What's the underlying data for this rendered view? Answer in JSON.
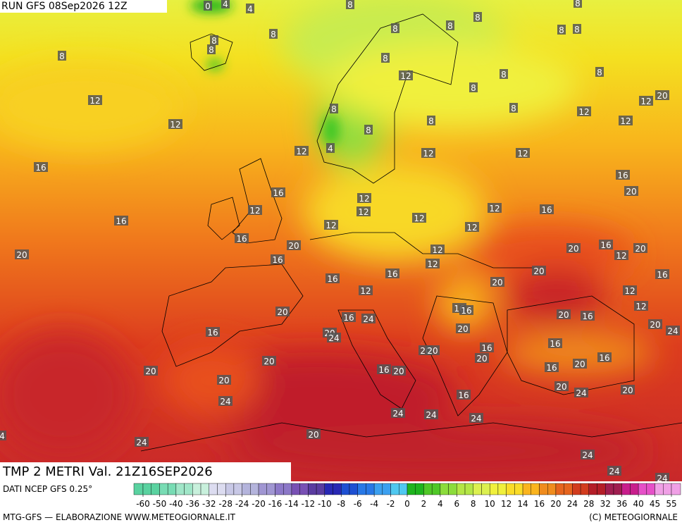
{
  "header": {
    "run": "RUN GFS 08Sep2026 12Z"
  },
  "title": "TMP 2 METRI Val. 21Z16SEP2026",
  "source": "DATI NCEP GFS 0.25°",
  "credit_left": "MTG-GFS — ELABORAZIONE WWW.METEOGIORNALE.IT",
  "credit_right": "(C) METEOGIORNALE",
  "colorbar": {
    "ticks": [
      -60,
      -50,
      -40,
      -36,
      -32,
      -28,
      -24,
      -20,
      -16,
      -14,
      -12,
      -10,
      -8,
      -6,
      -4,
      -2,
      0,
      2,
      4,
      6,
      8,
      10,
      12,
      14,
      16,
      20,
      24,
      28,
      32,
      36,
      40,
      45,
      55
    ],
    "colors": [
      "#5ad2a0",
      "#78dcb4",
      "#a0e6c8",
      "#c8f0dc",
      "#dcdcf0",
      "#c8c8e6",
      "#b4b4dc",
      "#a096d2",
      "#8c78c8",
      "#7850b4",
      "#5a3ca0",
      "#2828b4",
      "#1e50d2",
      "#2878e6",
      "#3ca0f0",
      "#50c8f0",
      "#1eb41e",
      "#50c828",
      "#8cdc3c",
      "#b4e646",
      "#dcf050",
      "#f0f03c",
      "#fadc28",
      "#fab41e",
      "#f08c1e",
      "#e6641e",
      "#d23c1e",
      "#b41e28",
      "#a01e50",
      "#c81e8c",
      "#e650c8",
      "#f0a0e6"
    ]
  },
  "map_labels": [
    0,
    4,
    4,
    8,
    8,
    8,
    8,
    8,
    8,
    8,
    8,
    8,
    8,
    8,
    8,
    12,
    8,
    8,
    8,
    12,
    8,
    8,
    12,
    12,
    20,
    12,
    8,
    8,
    12,
    12,
    4,
    12,
    12,
    16,
    16,
    20,
    16,
    12,
    12,
    12,
    12,
    12,
    16,
    16,
    12,
    12,
    16,
    20,
    20,
    16,
    12,
    20,
    12,
    20,
    16,
    12,
    20,
    16,
    16,
    16,
    20,
    12,
    12,
    12,
    16,
    16,
    20,
    20,
    16,
    16,
    24,
    20,
    20,
    24,
    16,
    20,
    24,
    16,
    16,
    20,
    20,
    20,
    20,
    16,
    20,
    16,
    20,
    16,
    20,
    20,
    20,
    24,
    20,
    16,
    24,
    24,
    24,
    24,
    20,
    24,
    4,
    24,
    24,
    24
  ]
}
